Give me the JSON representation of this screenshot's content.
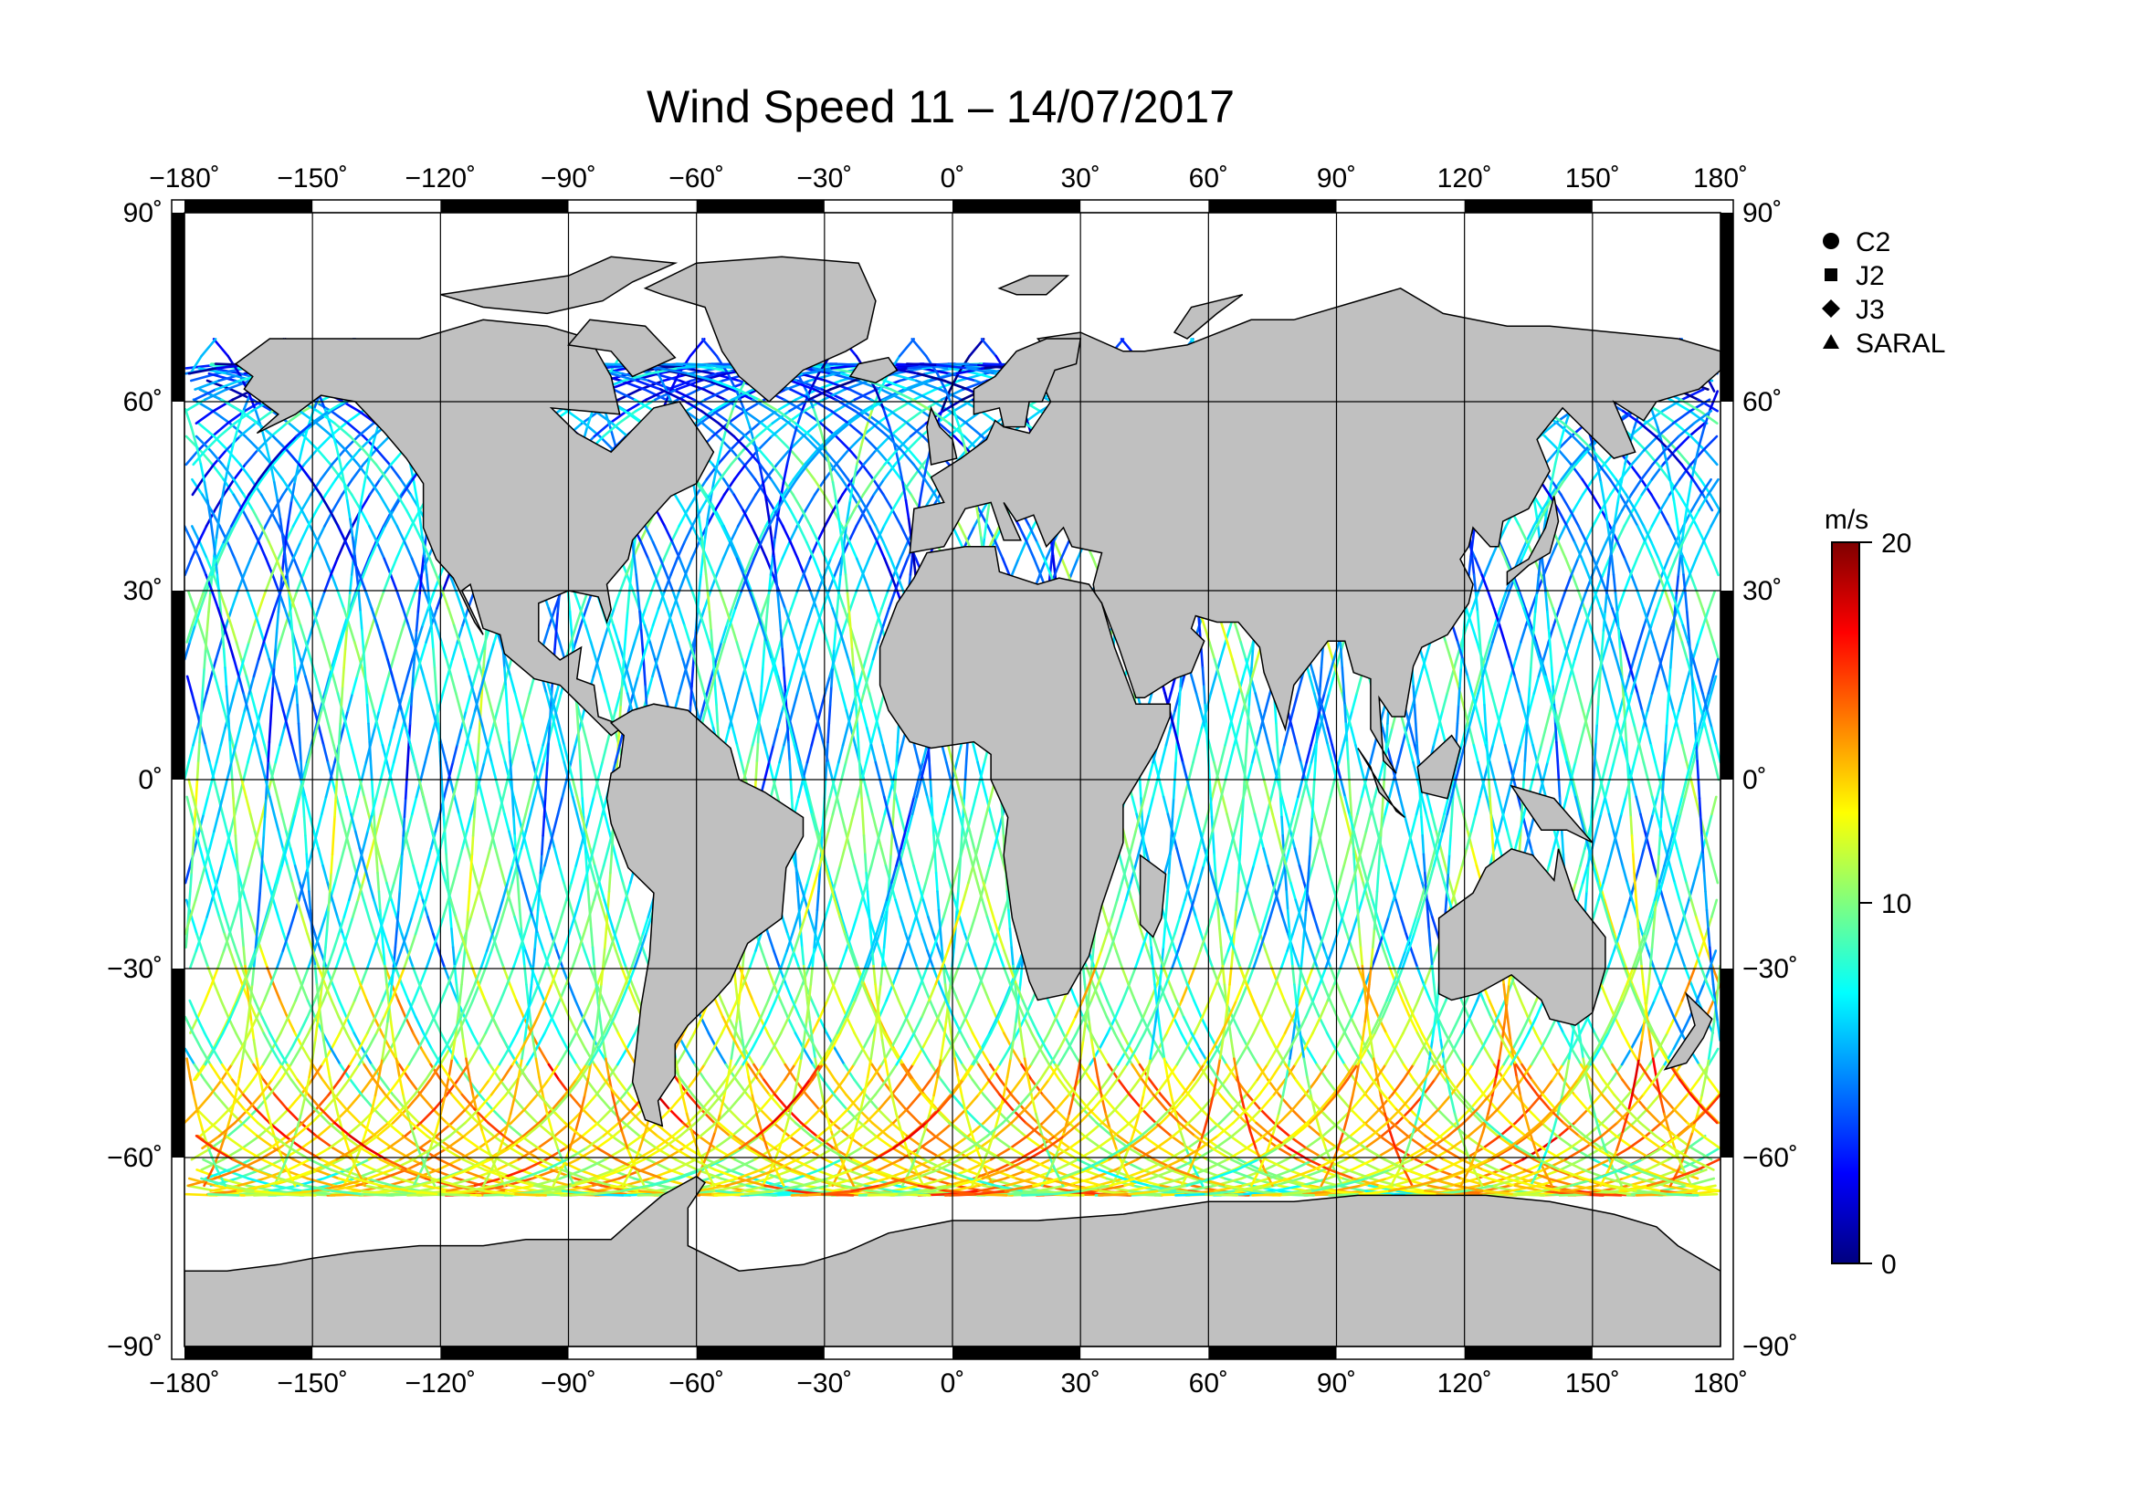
{
  "title": "Wind Speed 11 – 14/07/2017",
  "lon_ticks": [
    {
      "value": -180,
      "label": "−180˚"
    },
    {
      "value": -150,
      "label": "−150˚"
    },
    {
      "value": -120,
      "label": "−120˚"
    },
    {
      "value": -90,
      "label": "−90˚"
    },
    {
      "value": -60,
      "label": "−60˚"
    },
    {
      "value": -30,
      "label": "−30˚"
    },
    {
      "value": 0,
      "label": "0˚"
    },
    {
      "value": 30,
      "label": "30˚"
    },
    {
      "value": 60,
      "label": "60˚"
    },
    {
      "value": 90,
      "label": "90˚"
    },
    {
      "value": 120,
      "label": "120˚"
    },
    {
      "value": 150,
      "label": "150˚"
    },
    {
      "value": 180,
      "label": "180˚"
    }
  ],
  "lat_ticks": [
    {
      "value": 90,
      "label": "90˚"
    },
    {
      "value": 60,
      "label": "60˚"
    },
    {
      "value": 30,
      "label": "30˚"
    },
    {
      "value": 0,
      "label": "0˚"
    },
    {
      "value": -30,
      "label": "−30˚"
    },
    {
      "value": -60,
      "label": "−60˚"
    },
    {
      "value": -90,
      "label": "−90˚"
    }
  ],
  "satellites": [
    {
      "label": "C2",
      "symbol": "circle"
    },
    {
      "label": "J2",
      "symbol": "square"
    },
    {
      "label": "J3",
      "symbol": "diamond"
    },
    {
      "label": "SARAL",
      "symbol": "triangle"
    }
  ],
  "colorbar": {
    "unit": "m/s",
    "min": 0,
    "max": 20,
    "tick_labels": [
      {
        "value": 20,
        "label": "20"
      },
      {
        "value": 10,
        "label": "10"
      },
      {
        "value": 0,
        "label": "0"
      }
    ],
    "colors": [
      "#00007f",
      "#0000ff",
      "#007fff",
      "#00ffff",
      "#7fff7f",
      "#ffff00",
      "#ff7f00",
      "#ff0000",
      "#7f0000"
    ]
  },
  "colors": {
    "land": "#c0c0c0",
    "ocean": "#ffffff",
    "grid": "#000000",
    "frame": "#000000"
  },
  "chart_data": {
    "type": "map",
    "projection": "equirectangular",
    "xlim": [
      -180,
      180
    ],
    "ylim": [
      -90,
      90
    ],
    "variable": "Wind Speed",
    "unit": "m/s",
    "colorscale_range": [
      0,
      20
    ],
    "grid": true,
    "typical_wind_by_latitude_band": [
      {
        "band": [
          60,
          70
        ],
        "value": 4
      },
      {
        "band": [
          30,
          60
        ],
        "value": 6
      },
      {
        "band": [
          0,
          30
        ],
        "value": 7
      },
      {
        "band": [
          -30,
          0
        ],
        "value": 8
      },
      {
        "band": [
          -45,
          -30
        ],
        "value": 10
      },
      {
        "band": [
          -60,
          -45
        ],
        "value": 13
      },
      {
        "band": [
          -66,
          -60
        ],
        "value": 12
      }
    ]
  }
}
